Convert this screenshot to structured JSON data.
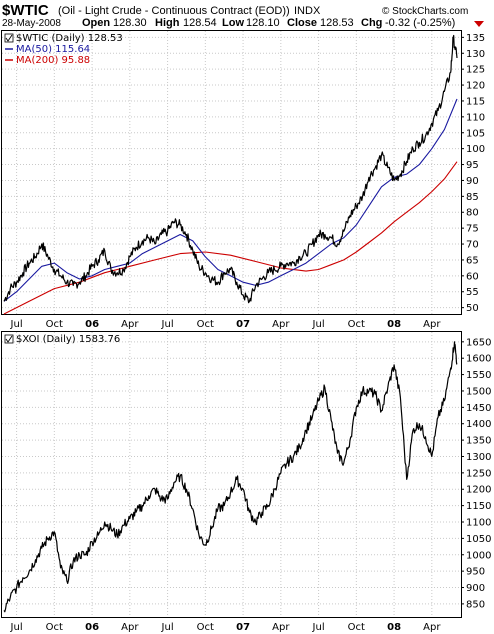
{
  "header": {
    "symbol": "$WTIC",
    "description": "(Oil - Light Crude - Continuous Contract (EOD))",
    "exchange": "INDX",
    "watermark": "© StockCharts.com",
    "date": "28-May-2008",
    "open_label": "Open",
    "open_value": "128.30",
    "high_label": "High",
    "high_value": "128.54",
    "low_label": "Low",
    "low_value": "128.10",
    "close_label": "Close",
    "close_value": "128.53",
    "chg_label": "Chg",
    "chg_value": "-0.32 (-0.25%)",
    "chg_arrow_color": "#cc0000"
  },
  "chart_data": [
    {
      "type": "line",
      "id": "wtic",
      "legend_position": "top-left",
      "grid": true,
      "legend": [
        {
          "text": "$WTIC (Daily) 128.53",
          "color": "#000000"
        },
        {
          "text": "MA(50) 115.64",
          "color": "#1a1aa0"
        },
        {
          "text": "MA(200) 95.88",
          "color": "#cc0000"
        }
      ],
      "ylim": [
        48,
        137
      ],
      "yticks": [
        50,
        55,
        60,
        65,
        70,
        75,
        80,
        85,
        90,
        95,
        100,
        105,
        110,
        115,
        120,
        125,
        130,
        135
      ],
      "x_range": [
        0,
        36
      ],
      "xticks": [
        {
          "label": "Jul",
          "x": 1,
          "bold": false
        },
        {
          "label": "Oct",
          "x": 4,
          "bold": false
        },
        {
          "label": "06",
          "x": 7,
          "bold": true
        },
        {
          "label": "Apr",
          "x": 10,
          "bold": false
        },
        {
          "label": "Jul",
          "x": 13,
          "bold": false
        },
        {
          "label": "Oct",
          "x": 16,
          "bold": false
        },
        {
          "label": "07",
          "x": 19,
          "bold": true
        },
        {
          "label": "Apr",
          "x": 22,
          "bold": false
        },
        {
          "label": "Jul",
          "x": 25,
          "bold": false
        },
        {
          "label": "Oct",
          "x": 28,
          "bold": false
        },
        {
          "label": "08",
          "x": 31,
          "bold": true
        },
        {
          "label": "Apr",
          "x": 34,
          "bold": false
        }
      ],
      "series": [
        {
          "name": "$WTIC",
          "color": "#000000",
          "points": [
            [
              0,
              52
            ],
            [
              0.5,
              56
            ],
            [
              1,
              58
            ],
            [
              1.5,
              61
            ],
            [
              2,
              64
            ],
            [
              2.5,
              66
            ],
            [
              3,
              70
            ],
            [
              3.5,
              66
            ],
            [
              4,
              62
            ],
            [
              4.5,
              60
            ],
            [
              5,
              58
            ],
            [
              5.5,
              57
            ],
            [
              6,
              58
            ],
            [
              6.5,
              60
            ],
            [
              7,
              63
            ],
            [
              7.5,
              65
            ],
            [
              8,
              68
            ],
            [
              8.5,
              62
            ],
            [
              9,
              61
            ],
            [
              9.5,
              62
            ],
            [
              10,
              66
            ],
            [
              10.5,
              69
            ],
            [
              11,
              71
            ],
            [
              11.5,
              72
            ],
            [
              12,
              70
            ],
            [
              12.5,
              73
            ],
            [
              13,
              74
            ],
            [
              13.5,
              77
            ],
            [
              14,
              76
            ],
            [
              14.5,
              73
            ],
            [
              15,
              68
            ],
            [
              15.5,
              63
            ],
            [
              16,
              61
            ],
            [
              16.5,
              59
            ],
            [
              17,
              58
            ],
            [
              17.5,
              61
            ],
            [
              18,
              62
            ],
            [
              18.5,
              58
            ],
            [
              19,
              54
            ],
            [
              19.5,
              52
            ],
            [
              20,
              57
            ],
            [
              20.5,
              59
            ],
            [
              21,
              61
            ],
            [
              21.5,
              62
            ],
            [
              22,
              63
            ],
            [
              22.5,
              64
            ],
            [
              23,
              64
            ],
            [
              23.5,
              66
            ],
            [
              24,
              67
            ],
            [
              24.5,
              70
            ],
            [
              25,
              73
            ],
            [
              25.5,
              73
            ],
            [
              26,
              72
            ],
            [
              26.5,
              70
            ],
            [
              27,
              74
            ],
            [
              27.5,
              79
            ],
            [
              28,
              82
            ],
            [
              28.5,
              85
            ],
            [
              29,
              91
            ],
            [
              29.5,
              94
            ],
            [
              30,
              98
            ],
            [
              30.5,
              94
            ],
            [
              31,
              90
            ],
            [
              31.5,
              92
            ],
            [
              32,
              96
            ],
            [
              32.5,
              100
            ],
            [
              33,
              102
            ],
            [
              33.5,
              104
            ],
            [
              34,
              108
            ],
            [
              34.5,
              112
            ],
            [
              35,
              118
            ],
            [
              35.5,
              124
            ],
            [
              35.7,
              135
            ],
            [
              36,
              128.5
            ]
          ]
        },
        {
          "name": "MA(50)",
          "color": "#1a1aa0",
          "points": [
            [
              0,
              52
            ],
            [
              1,
              55
            ],
            [
              2,
              59
            ],
            [
              3,
              63
            ],
            [
              4,
              64
            ],
            [
              5,
              61
            ],
            [
              6,
              59
            ],
            [
              7,
              60
            ],
            [
              8,
              62
            ],
            [
              9,
              63
            ],
            [
              10,
              64
            ],
            [
              11,
              67
            ],
            [
              12,
              69
            ],
            [
              13,
              71
            ],
            [
              14,
              73
            ],
            [
              15,
              71
            ],
            [
              16,
              66
            ],
            [
              17,
              62
            ],
            [
              18,
              60
            ],
            [
              19,
              58
            ],
            [
              20,
              57
            ],
            [
              21,
              58
            ],
            [
              22,
              60
            ],
            [
              23,
              62
            ],
            [
              24,
              64
            ],
            [
              25,
              67
            ],
            [
              26,
              70
            ],
            [
              27,
              72
            ],
            [
              28,
              76
            ],
            [
              29,
              82
            ],
            [
              30,
              88
            ],
            [
              31,
              91
            ],
            [
              32,
              92
            ],
            [
              33,
              95
            ],
            [
              34,
              100
            ],
            [
              35,
              106
            ],
            [
              36,
              115.6
            ]
          ]
        },
        {
          "name": "MA(200)",
          "color": "#cc0000",
          "points": [
            [
              0,
              48
            ],
            [
              2,
              52
            ],
            [
              4,
              56
            ],
            [
              6,
              58
            ],
            [
              8,
              61
            ],
            [
              10,
              63
            ],
            [
              12,
              65
            ],
            [
              14,
              67
            ],
            [
              16,
              67.5
            ],
            [
              18,
              66.5
            ],
            [
              20,
              64.5
            ],
            [
              22,
              62.5
            ],
            [
              24,
              61.5
            ],
            [
              25,
              62
            ],
            [
              26,
              63.5
            ],
            [
              27,
              65
            ],
            [
              28,
              67.5
            ],
            [
              29,
              70.5
            ],
            [
              30,
              73.5
            ],
            [
              31,
              77
            ],
            [
              32,
              80
            ],
            [
              33,
              83
            ],
            [
              34,
              86.5
            ],
            [
              35,
              90.5
            ],
            [
              36,
              95.9
            ]
          ]
        }
      ]
    },
    {
      "type": "line",
      "id": "xoi",
      "legend_position": "top-left",
      "grid": true,
      "legend": [
        {
          "text": "$XOI (Daily) 1583.76",
          "color": "#000000"
        }
      ],
      "ylim": [
        810,
        1680
      ],
      "yticks": [
        850,
        900,
        950,
        1000,
        1050,
        1100,
        1150,
        1200,
        1250,
        1300,
        1350,
        1400,
        1450,
        1500,
        1550,
        1600,
        1650
      ],
      "x_range": [
        0,
        36
      ],
      "xticks": [
        {
          "label": "Jul",
          "x": 1,
          "bold": false
        },
        {
          "label": "Oct",
          "x": 4,
          "bold": false
        },
        {
          "label": "06",
          "x": 7,
          "bold": true
        },
        {
          "label": "Apr",
          "x": 10,
          "bold": false
        },
        {
          "label": "Jul",
          "x": 13,
          "bold": false
        },
        {
          "label": "Oct",
          "x": 16,
          "bold": false
        },
        {
          "label": "07",
          "x": 19,
          "bold": true
        },
        {
          "label": "Apr",
          "x": 22,
          "bold": false
        },
        {
          "label": "Jul",
          "x": 25,
          "bold": false
        },
        {
          "label": "Oct",
          "x": 28,
          "bold": false
        },
        {
          "label": "08",
          "x": 31,
          "bold": true
        },
        {
          "label": "Apr",
          "x": 34,
          "bold": false
        }
      ],
      "series": [
        {
          "name": "$XOI",
          "color": "#000000",
          "points": [
            [
              0,
              830
            ],
            [
              0.5,
              870
            ],
            [
              1,
              900
            ],
            [
              1.5,
              930
            ],
            [
              2,
              950
            ],
            [
              2.5,
              985
            ],
            [
              3,
              1020
            ],
            [
              3.5,
              1050
            ],
            [
              4,
              1070
            ],
            [
              4.5,
              960
            ],
            [
              5,
              920
            ],
            [
              5.5,
              980
            ],
            [
              6,
              1000
            ],
            [
              6.5,
              1000
            ],
            [
              7,
              1040
            ],
            [
              7.5,
              1060
            ],
            [
              8,
              1100
            ],
            [
              8.5,
              1080
            ],
            [
              9,
              1060
            ],
            [
              9.5,
              1090
            ],
            [
              10,
              1110
            ],
            [
              10.5,
              1130
            ],
            [
              11,
              1150
            ],
            [
              11.5,
              1180
            ],
            [
              12,
              1200
            ],
            [
              12.5,
              1170
            ],
            [
              13,
              1170
            ],
            [
              13.5,
              1220
            ],
            [
              14,
              1240
            ],
            [
              14.5,
              1200
            ],
            [
              15,
              1140
            ],
            [
              15.5,
              1060
            ],
            [
              16,
              1030
            ],
            [
              16.5,
              1080
            ],
            [
              17,
              1140
            ],
            [
              17.5,
              1150
            ],
            [
              18,
              1190
            ],
            [
              18.5,
              1230
            ],
            [
              19,
              1200
            ],
            [
              19.5,
              1130
            ],
            [
              20,
              1100
            ],
            [
              20.5,
              1130
            ],
            [
              21,
              1150
            ],
            [
              21.5,
              1200
            ],
            [
              22,
              1250
            ],
            [
              22.5,
              1280
            ],
            [
              23,
              1300
            ],
            [
              23.5,
              1330
            ],
            [
              24,
              1380
            ],
            [
              24.5,
              1420
            ],
            [
              25,
              1470
            ],
            [
              25.5,
              1510
            ],
            [
              26,
              1410
            ],
            [
              26.5,
              1310
            ],
            [
              27,
              1280
            ],
            [
              27.5,
              1350
            ],
            [
              28,
              1450
            ],
            [
              28.5,
              1500
            ],
            [
              29,
              1500
            ],
            [
              29.5,
              1490
            ],
            [
              30,
              1440
            ],
            [
              30.5,
              1510
            ],
            [
              31,
              1580
            ],
            [
              31.5,
              1480
            ],
            [
              32,
              1230
            ],
            [
              32.5,
              1380
            ],
            [
              33,
              1400
            ],
            [
              33.5,
              1360
            ],
            [
              34,
              1300
            ],
            [
              34.5,
              1420
            ],
            [
              35,
              1470
            ],
            [
              35.5,
              1570
            ],
            [
              35.8,
              1650
            ],
            [
              36,
              1583.8
            ]
          ]
        }
      ]
    }
  ]
}
